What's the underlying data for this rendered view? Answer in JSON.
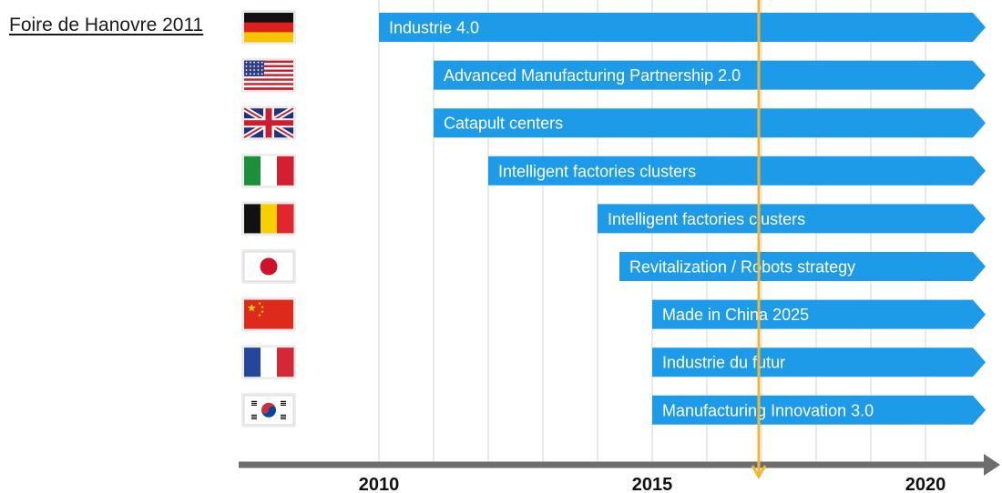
{
  "header": {
    "title": "Foire de Hanovre 2011"
  },
  "chart_data": {
    "type": "timeline",
    "x_ticks": [
      2010,
      2015,
      2020
    ],
    "xlim": [
      2010,
      2021
    ],
    "marker_year": 2017,
    "colors": {
      "bar": "#1e9be8",
      "axis": "#6d6d6d",
      "marker": "#f2b632",
      "grid": "#d6d6d6"
    },
    "initiatives": [
      {
        "country": "Germany",
        "flag": "germany-flag",
        "start": 2010,
        "label": "Industrie 4.0"
      },
      {
        "country": "United States",
        "flag": "usa-flag",
        "start": 2011,
        "label": "Advanced Manufacturing Partnership 2.0"
      },
      {
        "country": "United Kingdom",
        "flag": "uk-flag",
        "start": 2011,
        "label": "Catapult centers"
      },
      {
        "country": "Italy",
        "flag": "italy-flag",
        "start": 2012,
        "label": "Intelligent factories clusters"
      },
      {
        "country": "Belgium",
        "flag": "belgium-flag",
        "start": 2014,
        "label": "Intelligent factories clusters"
      },
      {
        "country": "Japan",
        "flag": "japan-flag",
        "start": 2014.4,
        "label": "Revitalization / Robots strategy"
      },
      {
        "country": "China",
        "flag": "china-flag",
        "start": 2015,
        "label": "Made in China 2025"
      },
      {
        "country": "France",
        "flag": "france-flag",
        "start": 2015,
        "label": "Industrie du futur"
      },
      {
        "country": "South Korea",
        "flag": "korea-flag",
        "start": 2015,
        "label": "Manufacturing Innovation 3.0"
      }
    ]
  }
}
